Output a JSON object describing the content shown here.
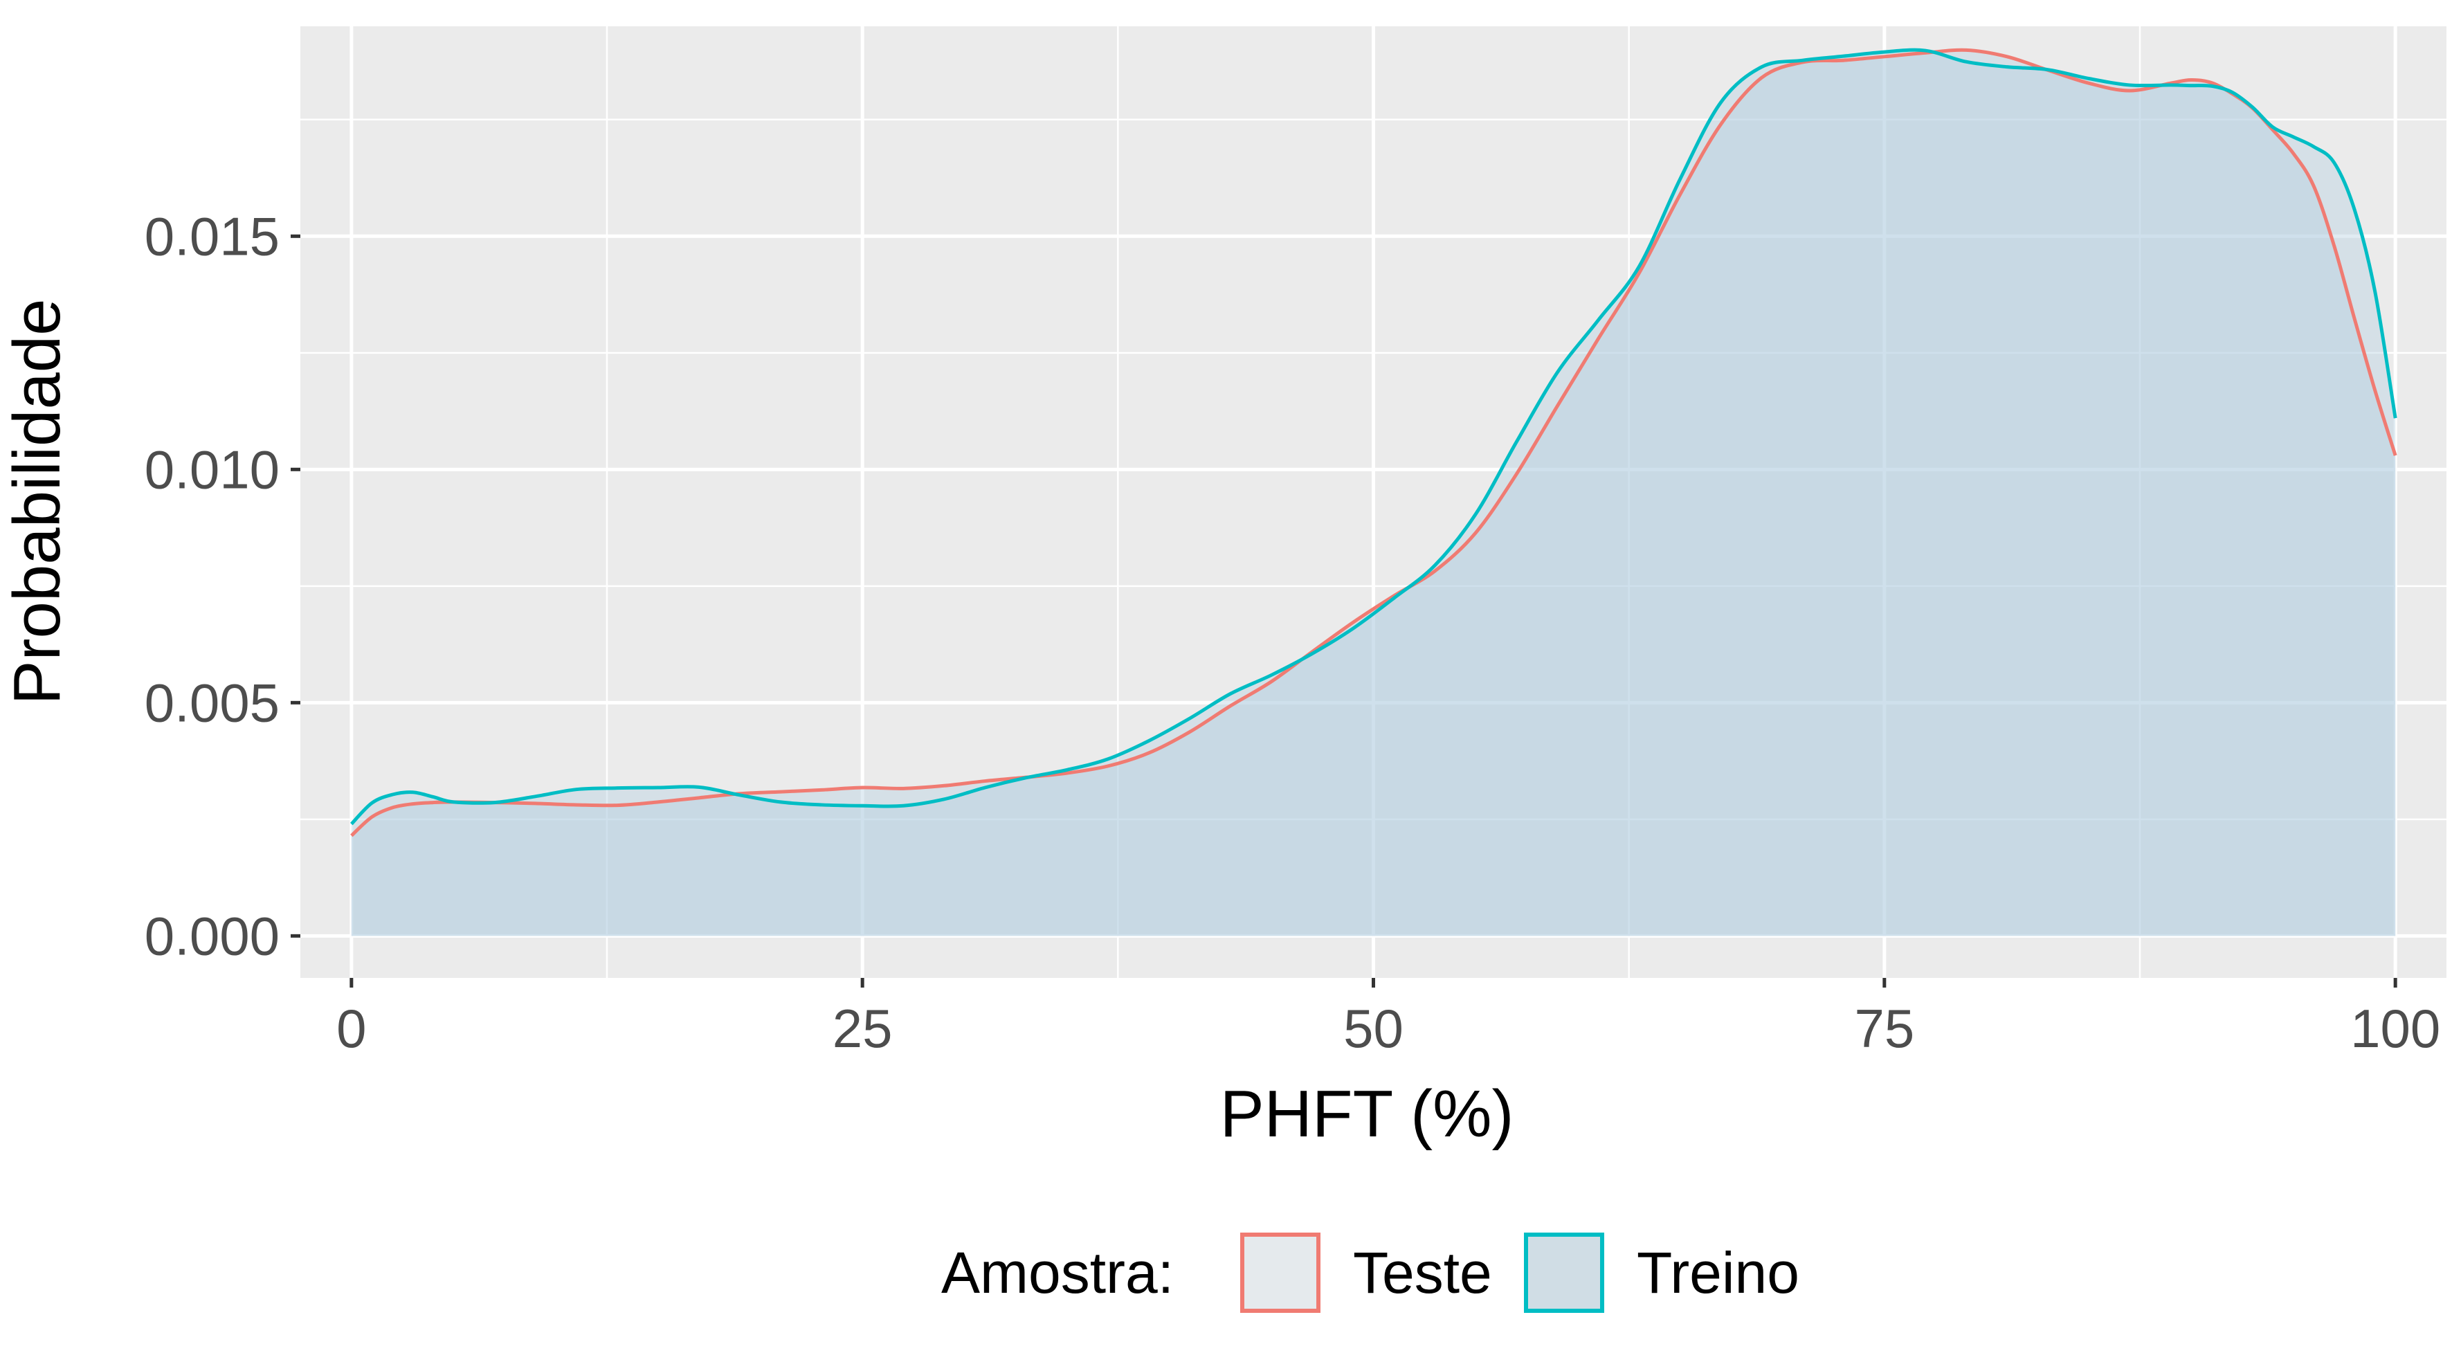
{
  "chart_data": {
    "type": "area",
    "title": "",
    "xlabel": "PHFT (%)",
    "ylabel": "Probabilidade",
    "xlim": [
      -2.5,
      102.5
    ],
    "ylim": [
      -0.0009,
      0.0195
    ],
    "x_ticks": [
      0,
      25,
      50,
      75,
      100
    ],
    "x_tick_labels": [
      "0",
      "25",
      "50",
      "75",
      "100"
    ],
    "y_ticks": [
      0.0,
      0.005,
      0.01,
      0.015
    ],
    "y_tick_labels": [
      "0.000",
      "0.005",
      "0.010",
      "0.015"
    ],
    "grid": true,
    "legend": {
      "position": "bottom",
      "title": "Amostra:",
      "entries": [
        "Teste",
        "Treino"
      ]
    },
    "fill_color": "#d0dde5",
    "series": [
      {
        "name": "Teste",
        "color": "#f07b72",
        "x": [
          0,
          1,
          2,
          3,
          4,
          5,
          7,
          9,
          11,
          13,
          15,
          17,
          19,
          21,
          23,
          25,
          27,
          29,
          31,
          33,
          35,
          37,
          39,
          41,
          43,
          45,
          47,
          49,
          51,
          53,
          55,
          57,
          59,
          61,
          63,
          65,
          67,
          69,
          71,
          73,
          75,
          77,
          79,
          81,
          83,
          85,
          87,
          89,
          90,
          91,
          92,
          93,
          94,
          95,
          96,
          97,
          98,
          99,
          100
        ],
        "y": [
          0.00215,
          0.00255,
          0.00275,
          0.00283,
          0.00286,
          0.00287,
          0.00286,
          0.00284,
          0.00281,
          0.0028,
          0.00287,
          0.00296,
          0.00305,
          0.00309,
          0.00313,
          0.00318,
          0.00316,
          0.00322,
          0.00332,
          0.0034,
          0.00349,
          0.00364,
          0.00392,
          0.00437,
          0.00493,
          0.00545,
          0.00609,
          0.00672,
          0.00729,
          0.00782,
          0.00864,
          0.0099,
          0.01136,
          0.0128,
          0.01421,
          0.01589,
          0.0174,
          0.0184,
          0.01873,
          0.01877,
          0.01885,
          0.01893,
          0.01899,
          0.01885,
          0.01856,
          0.01828,
          0.01812,
          0.01828,
          0.01835,
          0.01829,
          0.01806,
          0.01775,
          0.01728,
          0.01678,
          0.01608,
          0.0148,
          0.01323,
          0.0117,
          0.0103
        ]
      },
      {
        "name": "Treino",
        "color": "#00bdc4",
        "x": [
          0,
          1,
          2,
          3,
          4,
          5,
          7,
          9,
          11,
          13,
          15,
          17,
          19,
          21,
          23,
          25,
          27,
          29,
          31,
          33,
          35,
          37,
          39,
          41,
          43,
          45,
          47,
          49,
          51,
          53,
          55,
          57,
          59,
          61,
          63,
          65,
          67,
          69,
          71,
          73,
          75,
          77,
          79,
          81,
          83,
          85,
          87,
          89,
          90,
          91,
          92,
          93,
          94,
          95,
          96,
          97,
          98,
          99,
          100
        ],
        "y": [
          0.0024,
          0.00285,
          0.00303,
          0.00308,
          0.00298,
          0.00287,
          0.00286,
          0.00299,
          0.00314,
          0.00317,
          0.00318,
          0.00319,
          0.00302,
          0.00287,
          0.00281,
          0.00279,
          0.00279,
          0.00293,
          0.00318,
          0.00339,
          0.00356,
          0.00379,
          0.00418,
          0.00466,
          0.00519,
          0.00559,
          0.00605,
          0.00659,
          0.00724,
          0.00794,
          0.00904,
          0.01059,
          0.01208,
          0.0132,
          0.01435,
          0.01622,
          0.01787,
          0.01863,
          0.01877,
          0.01886,
          0.01895,
          0.01898,
          0.01874,
          0.01863,
          0.01857,
          0.01838,
          0.01824,
          0.01824,
          0.01823,
          0.01822,
          0.01809,
          0.01777,
          0.01734,
          0.01713,
          0.01692,
          0.01658,
          0.01557,
          0.01382,
          0.0111
        ]
      }
    ]
  }
}
